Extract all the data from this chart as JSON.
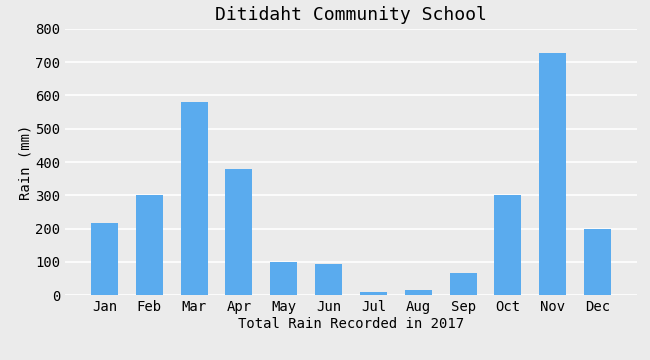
{
  "title": "Ditidaht Community School",
  "xlabel": "Total Rain Recorded in 2017",
  "ylabel": "Rain (mm)",
  "months": [
    "Jan",
    "Feb",
    "Mar",
    "Apr",
    "May",
    "Jun",
    "Jul",
    "Aug",
    "Sep",
    "Oct",
    "Nov",
    "Dec"
  ],
  "values": [
    218,
    302,
    580,
    378,
    100,
    93,
    10,
    17,
    67,
    300,
    728,
    200
  ],
  "bar_color": "#5aabee",
  "background_color": "#ebebeb",
  "ylim": [
    0,
    800
  ],
  "yticks": [
    0,
    100,
    200,
    300,
    400,
    500,
    600,
    700,
    800
  ],
  "title_fontsize": 13,
  "label_fontsize": 10,
  "tick_fontsize": 10
}
